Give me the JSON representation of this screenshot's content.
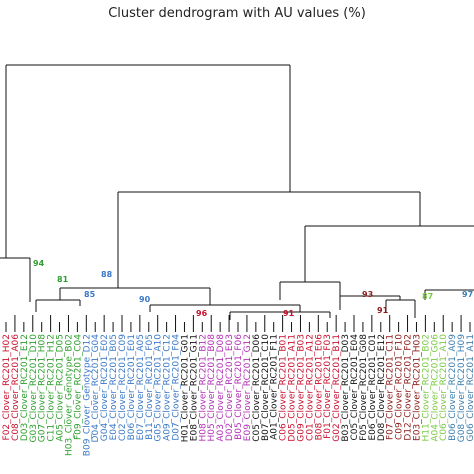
{
  "title": "Cluster dendrogram with AU values (%)",
  "colors": {
    "red": "#c8102e",
    "green": "#2e9e2e",
    "blue": "#3b78c7",
    "magenta": "#b12fb5",
    "black": "#111111",
    "darkred": "#8b1a1a",
    "lightgreen": "#7ac943",
    "teal": "#3c7fb0"
  },
  "au_values": [
    {
      "text": "94",
      "color": "green"
    },
    {
      "text": "81",
      "color": "green"
    },
    {
      "text": "88",
      "color": "blue"
    },
    {
      "text": "85",
      "color": "blue"
    },
    {
      "text": "90",
      "color": "blue"
    },
    {
      "text": "96",
      "color": "red"
    },
    {
      "text": "93",
      "color": "darkred"
    },
    {
      "text": "91",
      "color": "red"
    },
    {
      "text": "91",
      "color": "darkred"
    },
    {
      "text": "87",
      "color": "lightgreen"
    },
    {
      "text": "97",
      "color": "teal"
    }
  ],
  "leaves": [
    {
      "label": "F02_Clover_RC201_H02",
      "color": "red"
    },
    {
      "label": "C08_Clover_RC201_A06",
      "color": "red"
    },
    {
      "label": "D03_Clover_RC201_E12",
      "color": "green"
    },
    {
      "label": "G03_Clover_RC201_D10",
      "color": "green"
    },
    {
      "label": "G07_Clover_RC201_H08",
      "color": "green"
    },
    {
      "label": "C11_Clover_RC201_H12",
      "color": "green"
    },
    {
      "label": "A05_Clover_RC201_D05",
      "color": "green"
    },
    {
      "label": "H03_Clover_Genotype_B02",
      "color": "green"
    },
    {
      "label": "F09_Clover_RC201_C04",
      "color": "green"
    },
    {
      "label": "B09_Clover_Genotype_D12",
      "color": "blue"
    },
    {
      "label": "D04_Clover_RC201_G04",
      "color": "blue"
    },
    {
      "label": "G04_Clover_RC201_E02",
      "color": "blue"
    },
    {
      "label": "E04_Clover_RC201_B05",
      "color": "blue"
    },
    {
      "label": "C02_Clover_RC201_C09",
      "color": "blue"
    },
    {
      "label": "B06_Clover_RC201_E01",
      "color": "blue"
    },
    {
      "label": "E07_Clover_RC201_A05",
      "color": "blue"
    },
    {
      "label": "B11_Clover_RC201_F05",
      "color": "blue"
    },
    {
      "label": "G05_Clover_RC201_A10",
      "color": "blue"
    },
    {
      "label": "A09_Clover_RC201_C12",
      "color": "blue"
    },
    {
      "label": "D07_Clover_RC201_F04",
      "color": "blue"
    },
    {
      "label": "H01_Clover_RC201_G01",
      "color": "black"
    },
    {
      "label": "E08_Clover_RC201_G11",
      "color": "black"
    },
    {
      "label": "H08_Clover_RC201_B12",
      "color": "magenta"
    },
    {
      "label": "H05_Clover_RC201_B08",
      "color": "magenta"
    },
    {
      "label": "A03_Clover_RC201_D08",
      "color": "magenta"
    },
    {
      "label": "D02_Clover_RC201_E03",
      "color": "magenta"
    },
    {
      "label": "B05_Clover_RC201_F06",
      "color": "magenta"
    },
    {
      "label": "E09_Clover_RC201_G12",
      "color": "magenta"
    },
    {
      "label": "C05_Clover_RC201_D06",
      "color": "black"
    },
    {
      "label": "B07_Clover_RC201_C10",
      "color": "black"
    },
    {
      "label": "A01_Clover_RC201_F11",
      "color": "black"
    },
    {
      "label": "C06_Clover_RC201_B01",
      "color": "red"
    },
    {
      "label": "D05_Clover_RC201_A11",
      "color": "red"
    },
    {
      "label": "G09_Clover_RC201_B03",
      "color": "red"
    },
    {
      "label": "C01_Clover_RC201_A12",
      "color": "red"
    },
    {
      "label": "B08_Clover_RC201_E06",
      "color": "red"
    },
    {
      "label": "F01_Clover_RC201_F03",
      "color": "red"
    },
    {
      "label": "G02_Clover_RC201_B11",
      "color": "red"
    },
    {
      "label": "B03_Clover_RC201_D03",
      "color": "black"
    },
    {
      "label": "C05_Clover_RC201_E04",
      "color": "black"
    },
    {
      "label": "F05_Clover_RC201_G08",
      "color": "black"
    },
    {
      "label": "E06_Clover_RC201_C01",
      "color": "black"
    },
    {
      "label": "D08_Clover_RC201_E12",
      "color": "black"
    },
    {
      "label": "F07_Clover_RC201_C11",
      "color": "darkred"
    },
    {
      "label": "C09_Clover_RC201_F10",
      "color": "darkred"
    },
    {
      "label": "D12_Clover_RC201_F02",
      "color": "darkred"
    },
    {
      "label": "E03_Clover_RC201_H03",
      "color": "darkred"
    },
    {
      "label": "H11_Clover_RC201_B02",
      "color": "lightgreen"
    },
    {
      "label": "A04_Clover_RC201_G06",
      "color": "lightgreen"
    },
    {
      "label": "C06_Clover_RC201_A10",
      "color": "lightgreen"
    },
    {
      "label": "B06_Clover_RC201_A09",
      "color": "teal"
    },
    {
      "label": "G08_Clover_RC201_H09",
      "color": "teal"
    },
    {
      "label": "G06_Clover_RC201_A11",
      "color": "teal"
    }
  ]
}
